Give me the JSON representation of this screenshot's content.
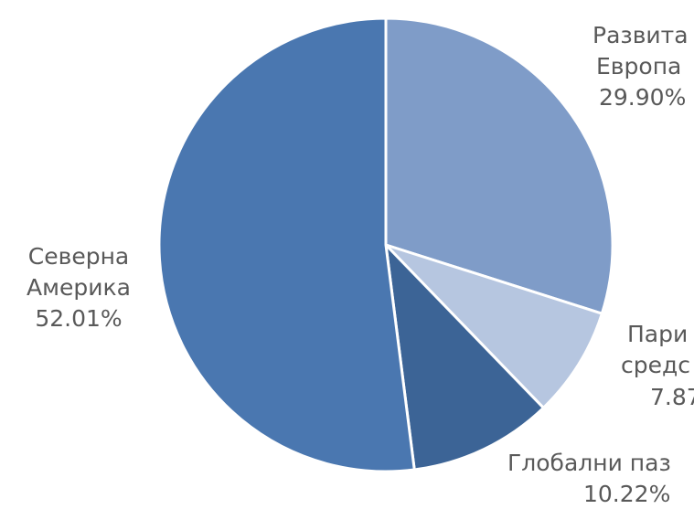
{
  "chart_data": {
    "type": "pie",
    "title": "",
    "slices": [
      {
        "name": "Развита Европа",
        "label_lines": [
          "Развита",
          "Европа"
        ],
        "value": 29.9,
        "value_label": "29.90%",
        "color": "#7f9cc8"
      },
      {
        "name": "Парични средства",
        "label_lines": [
          "Пари",
          "средс"
        ],
        "value": 7.87,
        "value_label": "7.87",
        "color": "#b6c6e0"
      },
      {
        "name": "Глобални пазари",
        "label_lines": [
          "Глобални паз"
        ],
        "value": 10.22,
        "value_label": "10.22%",
        "color": "#3c6496"
      },
      {
        "name": "Северна Америка",
        "label_lines": [
          "Северна",
          "Америка"
        ],
        "value": 52.01,
        "value_label": "52.01%",
        "color": "#4a77b0"
      }
    ],
    "start_angle_deg": 0,
    "direction": "clockwise",
    "legend": "none",
    "data_labels": "outside"
  }
}
